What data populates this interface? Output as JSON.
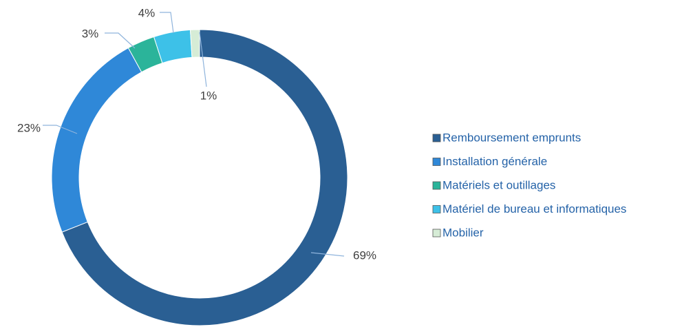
{
  "chart_data": {
    "type": "donut",
    "categories": [
      "Remboursement emprunts",
      "Installation générale",
      "Matériels et outillages",
      "Matériel de bureau et informatiques",
      "Mobilier"
    ],
    "values": [
      69,
      23,
      3,
      4,
      1
    ],
    "value_labels": [
      "69%",
      "23%",
      "3%",
      "4%",
      "1%"
    ],
    "colors": [
      "#2a5f93",
      "#2f88d8",
      "#2bb49a",
      "#3dc1e8",
      "#d6ecd6"
    ],
    "legend": "right"
  }
}
